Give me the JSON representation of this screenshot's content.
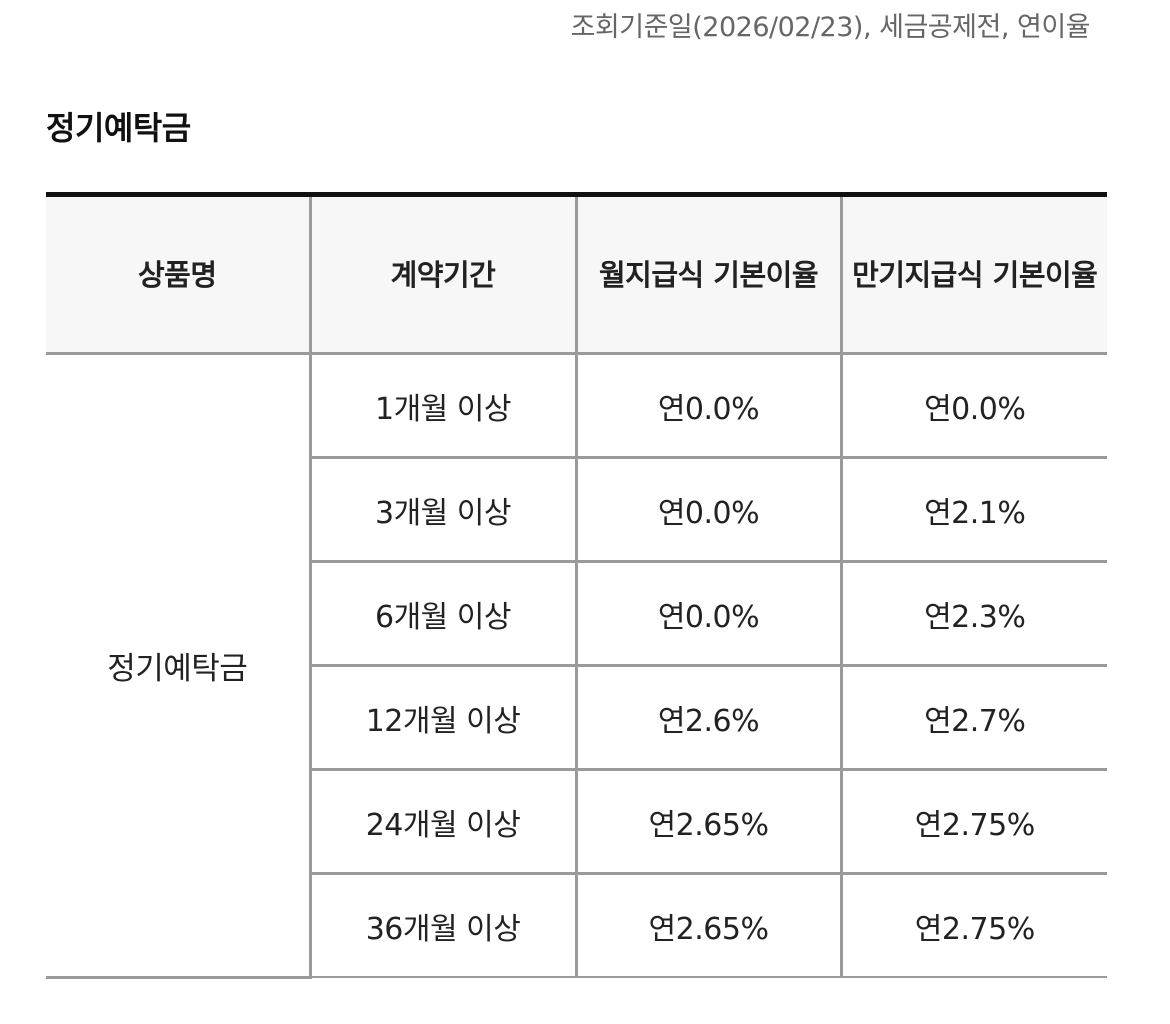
{
  "basis_note": "조회기준일(2026/02/23), 세금공제전, 연이율",
  "section_title": "정기예탁금",
  "table": {
    "headers": [
      "상품명",
      "계약기간",
      "월지급식 기본이율",
      "만기지급식 기본이율"
    ],
    "product_name": "정기예탁금",
    "rows": [
      {
        "period": "1개월 이상",
        "monthly_rate": "연0.0%",
        "maturity_rate": "연0.0%"
      },
      {
        "period": "3개월 이상",
        "monthly_rate": "연0.0%",
        "maturity_rate": "연2.1%"
      },
      {
        "period": "6개월 이상",
        "monthly_rate": "연0.0%",
        "maturity_rate": "연2.3%"
      },
      {
        "period": "12개월 이상",
        "monthly_rate": "연2.6%",
        "maturity_rate": "연2.7%"
      },
      {
        "period": "24개월 이상",
        "monthly_rate": "연2.65%",
        "maturity_rate": "연2.75%"
      },
      {
        "period": "36개월 이상",
        "monthly_rate": "연2.65%",
        "maturity_rate": "연2.75%"
      }
    ]
  }
}
